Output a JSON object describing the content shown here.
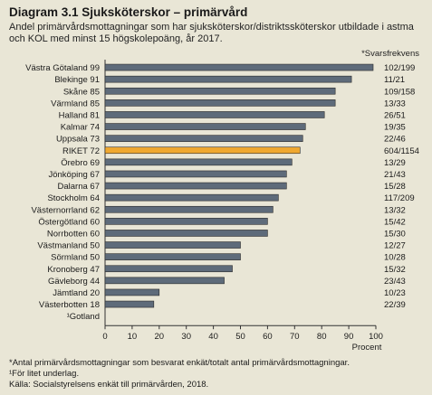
{
  "title": "Diagram 3.1 Sjuksköterskor – primärvård",
  "subtitle": "Andel primärvårdsmottagningar som har sjuksköterskor/distriktssköterskor utbildade i astma och KOL med minst 15 högskolepoäng, år 2017.",
  "legend_note": "*Svarsfrekvens",
  "footnotes": [
    "*Antal primärvårdsmottagningar som besvarat enkät/totalt antal primärvårdsmottagningar.",
    "¹För litet underlag.",
    "Källa: Socialstyrelsens enkät till primärvården, 2018."
  ],
  "colors": {
    "background": "#e9e6d6",
    "bar": "#5e6b7a",
    "highlight": "#f0a830"
  },
  "chart_data": {
    "type": "bar",
    "orientation": "horizontal",
    "xlabel": "Procent",
    "xlim": [
      0,
      100
    ],
    "xticks": [
      0,
      10,
      20,
      30,
      40,
      50,
      60,
      70,
      80,
      90,
      100
    ],
    "grid": false,
    "categories": [
      "Västra Götaland 99",
      "Blekinge 91",
      "Skåne 85",
      "Värmland 85",
      "Halland 81",
      "Kalmar 74",
      "Uppsala 73",
      "RIKET 72",
      "Örebro 69",
      "Jönköping 67",
      "Dalarna 67",
      "Stockholm 64",
      "Västernorrland 62",
      "Östergötland 60",
      "Norrbotten 60",
      "Västmanland 50",
      "Sörmland 50",
      "Kronoberg 47",
      "Gävleborg 44",
      "Jämtland 20",
      "Västerbotten 18",
      "¹Gotland"
    ],
    "values": [
      99,
      91,
      85,
      85,
      81,
      74,
      73,
      72,
      69,
      67,
      67,
      64,
      62,
      60,
      60,
      50,
      50,
      47,
      44,
      20,
      18,
      null
    ],
    "highlight": [
      "RIKET 72"
    ],
    "response_rate": [
      "102/199",
      "11/21",
      "109/158",
      "13/33",
      "26/51",
      "19/35",
      "22/46",
      "604/1154",
      "13/29",
      "21/43",
      "15/28",
      "117/209",
      "13/32",
      "15/42",
      "15/30",
      "12/27",
      "10/28",
      "15/32",
      "23/43",
      "10/23",
      "22/39",
      ""
    ]
  }
}
